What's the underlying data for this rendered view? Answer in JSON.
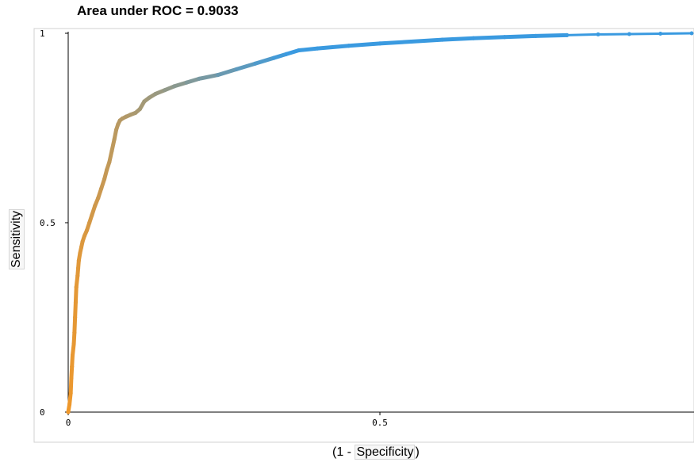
{
  "chart_data": {
    "type": "line",
    "title": "Area under ROC = 0.9033",
    "ylabel": "Sensitivity",
    "xlabel_prefix": "(1 - ",
    "xlabel_word": "Specificity",
    "xlabel_suffix": ")",
    "xlim": [
      0,
      1
    ],
    "ylim": [
      0,
      1
    ],
    "xticks": [
      {
        "value": 0,
        "label": "0"
      },
      {
        "value": 0.5,
        "label": "0.5"
      }
    ],
    "yticks": [
      {
        "value": 0,
        "label": "0"
      },
      {
        "value": 0.5,
        "label": "0.5"
      },
      {
        "value": 1,
        "label": "1"
      }
    ],
    "grid": false,
    "colormap": {
      "start": "#f0982a",
      "end": "#3a9ae0"
    },
    "x": [
      0.0,
      0.002,
      0.004,
      0.005,
      0.006,
      0.007,
      0.009,
      0.01,
      0.011,
      0.012,
      0.013,
      0.015,
      0.016,
      0.017,
      0.019,
      0.021,
      0.023,
      0.026,
      0.03,
      0.034,
      0.038,
      0.043,
      0.048,
      0.053,
      0.058,
      0.062,
      0.066,
      0.07,
      0.074,
      0.077,
      0.08,
      0.083,
      0.087,
      0.093,
      0.1,
      0.108,
      0.115,
      0.122,
      0.13,
      0.14,
      0.155,
      0.17,
      0.19,
      0.21,
      0.24,
      0.27,
      0.3,
      0.33,
      0.35,
      0.37,
      0.4,
      0.45,
      0.5,
      0.55,
      0.6,
      0.65,
      0.7,
      0.75,
      0.8,
      0.85,
      0.9,
      0.95,
      1.0
    ],
    "y": [
      0.0,
      0.02,
      0.05,
      0.09,
      0.12,
      0.15,
      0.18,
      0.21,
      0.25,
      0.29,
      0.33,
      0.36,
      0.38,
      0.4,
      0.42,
      0.435,
      0.45,
      0.465,
      0.48,
      0.5,
      0.52,
      0.545,
      0.565,
      0.59,
      0.615,
      0.64,
      0.66,
      0.69,
      0.72,
      0.745,
      0.76,
      0.77,
      0.775,
      0.78,
      0.785,
      0.79,
      0.8,
      0.82,
      0.83,
      0.84,
      0.85,
      0.86,
      0.87,
      0.88,
      0.89,
      0.905,
      0.92,
      0.935,
      0.945,
      0.955,
      0.96,
      0.967,
      0.973,
      0.978,
      0.983,
      0.987,
      0.99,
      0.993,
      0.995,
      0.997,
      0.998,
      0.999,
      1.0
    ]
  }
}
